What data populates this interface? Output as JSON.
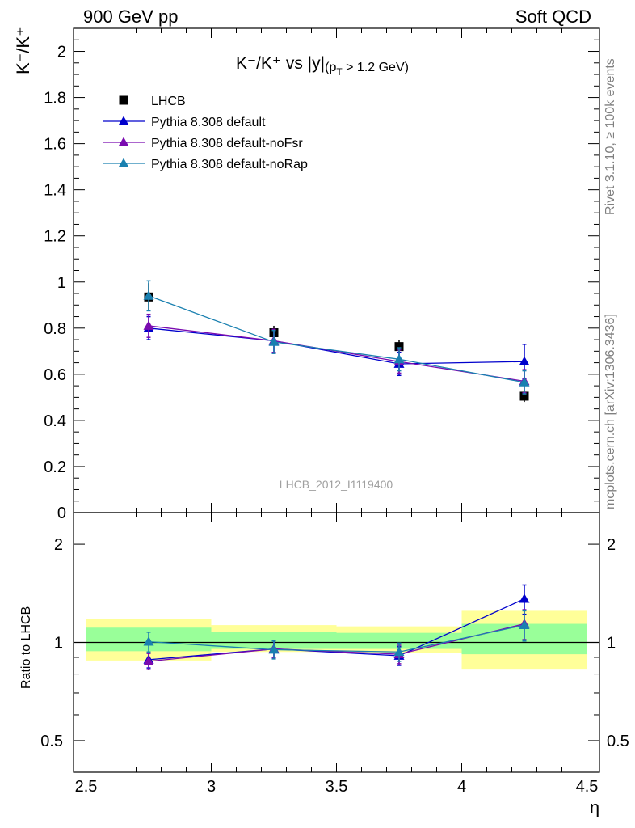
{
  "header": {
    "left": "900 GeV pp",
    "right": "Soft QCD"
  },
  "side_labels": {
    "rivet": "Rivet 3.1.10, ≥ 100k events",
    "mcplots": "mcplots.cern.ch [arXiv:1306.3436]"
  },
  "watermark": "LHCB_2012_I1119400",
  "chart_data": [
    {
      "type": "scatter",
      "panel": "main",
      "title_main": "K⁻/K⁺ vs |y|",
      "title_sub": "(p",
      "title_sub_index": "T",
      "title_sub_tail": " > 1.2 GeV)",
      "ylabel": "K⁻/K⁺",
      "ylim": [
        0,
        2.1
      ],
      "yticks": [
        0,
        0.2,
        0.4,
        0.6,
        0.8,
        1,
        1.2,
        1.4,
        1.6,
        1.8,
        2
      ],
      "ytick_labels": [
        "0",
        "0.2",
        "0.4",
        "0.6",
        "0.8",
        "1",
        "1.2",
        "1.4",
        "1.6",
        "1.8",
        "2"
      ],
      "xlim": [
        2.45,
        4.55
      ],
      "data": {
        "name": "LHCB",
        "color": "#000000",
        "x": [
          2.75,
          3.25,
          3.75,
          4.25
        ],
        "xerr": [
          0.25,
          0.25,
          0.25,
          0.25
        ],
        "y": [
          0.935,
          0.78,
          0.72,
          0.505
        ],
        "yerr": [
          0.06,
          0.03,
          0.03,
          0.025
        ]
      },
      "series": [
        {
          "name": "Pythia 8.308 default",
          "color": "#0000cc",
          "x": [
            2.75,
            3.25,
            3.75,
            4.25
          ],
          "y": [
            0.8,
            0.745,
            0.645,
            0.655
          ],
          "yerr": [
            0.05,
            0.05,
            0.05,
            0.075
          ]
        },
        {
          "name": "Pythia 8.308 default-noFsr",
          "color": "#7a0bb0",
          "x": [
            2.75,
            3.25,
            3.75,
            4.25
          ],
          "y": [
            0.81,
            0.745,
            0.655,
            0.57
          ],
          "yerr": [
            0.05,
            0.05,
            0.05,
            0.05
          ]
        },
        {
          "name": "Pythia 8.308 default-noRap",
          "color": "#1a80b0",
          "x": [
            2.75,
            3.25,
            3.75,
            4.25
          ],
          "y": [
            0.94,
            0.74,
            0.665,
            0.565
          ],
          "yerr": [
            0.065,
            0.05,
            0.05,
            0.05
          ]
        }
      ],
      "legend_placement": "top-left"
    },
    {
      "type": "scatter",
      "panel": "ratio",
      "ylabel": "Ratio to LHCB",
      "xlabel": "η",
      "ylog": true,
      "ylim": [
        0.4,
        2.5
      ],
      "yticks": [
        0.5,
        1,
        2
      ],
      "ytick_labels": [
        "0.5",
        "1",
        "2"
      ],
      "xlim": [
        2.45,
        4.55
      ],
      "xticks": [
        2.5,
        3,
        3.5,
        4,
        4.5
      ],
      "xtick_labels": [
        "2.5",
        "3",
        "3.5",
        "4",
        "4.5"
      ],
      "bands": [
        {
          "x0": 2.5,
          "x1": 3.0,
          "yellow": [
            0.88,
            1.18
          ],
          "green": [
            0.94,
            1.11
          ]
        },
        {
          "x0": 3.0,
          "x1": 3.5,
          "yellow": [
            0.935,
            1.13
          ],
          "green": [
            0.955,
            1.075
          ]
        },
        {
          "x0": 3.5,
          "x1": 4.0,
          "yellow": [
            0.93,
            1.12
          ],
          "green": [
            0.955,
            1.07
          ]
        },
        {
          "x0": 4.0,
          "x1": 4.5,
          "yellow": [
            0.83,
            1.25
          ],
          "green": [
            0.92,
            1.14
          ]
        }
      ],
      "series": [
        {
          "name": "Pythia 8.308 default",
          "color": "#0000cc",
          "x": [
            2.75,
            3.25,
            3.75,
            4.25
          ],
          "y": [
            0.885,
            0.955,
            0.91,
            1.36
          ],
          "yerr": [
            0.05,
            0.06,
            0.06,
            0.14
          ]
        },
        {
          "name": "Pythia 8.308 default-noFsr",
          "color": "#7a0bb0",
          "x": [
            2.75,
            3.25,
            3.75,
            4.25
          ],
          "y": [
            0.875,
            0.955,
            0.92,
            1.14
          ],
          "yerr": [
            0.05,
            0.06,
            0.06,
            0.12
          ]
        },
        {
          "name": "Pythia 8.308 default-noRap",
          "color": "#1a80b0",
          "x": [
            2.75,
            3.25,
            3.75,
            4.25
          ],
          "y": [
            1.005,
            0.95,
            0.935,
            1.13
          ],
          "yerr": [
            0.07,
            0.06,
            0.06,
            0.12
          ]
        }
      ]
    }
  ]
}
